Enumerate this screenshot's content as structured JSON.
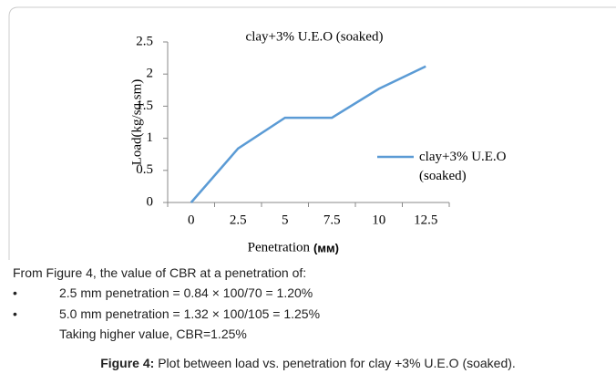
{
  "chart_data": {
    "type": "line",
    "title": "clay+3% U.E.O (soaked)",
    "ylabel": "Load(kg/sq.sm)",
    "xlabel": "Penetration",
    "xlabel_unit": "(мм)",
    "categories": [
      "0",
      "2.5",
      "5",
      "7.5",
      "10",
      "12.5"
    ],
    "series": [
      {
        "name": "clay+3% U.E.O (soaked)",
        "color": "#5b9bd5",
        "values": [
          0,
          0.84,
          1.32,
          1.32,
          1.77,
          2.12
        ]
      }
    ],
    "ylim": [
      0,
      2.5
    ],
    "yticks": [
      0,
      0.5,
      1,
      1.5,
      2,
      2.5
    ],
    "grid": false,
    "legend": "right"
  },
  "text": {
    "intro": "From Figure 4, the value of CBR at a penetration of:",
    "bullets": [
      "2.5 mm penetration = 0.84 × 100/70 = 1.20%",
      "5.0 mm penetration = 1.32 × 100/105 = 1.25%"
    ],
    "conclusion": "Taking higher value, CBR=1.25%",
    "caption_label": "Figure 4:",
    "caption": "Plot between load vs. penetration for clay +3% U.E.O (soaked)."
  }
}
